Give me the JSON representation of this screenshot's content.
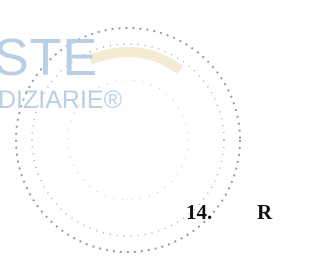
{
  "watermark": {
    "line1": "STE",
    "line2": "DIZIARIE®"
  },
  "section": {
    "number": "14.",
    "text": "R"
  }
}
